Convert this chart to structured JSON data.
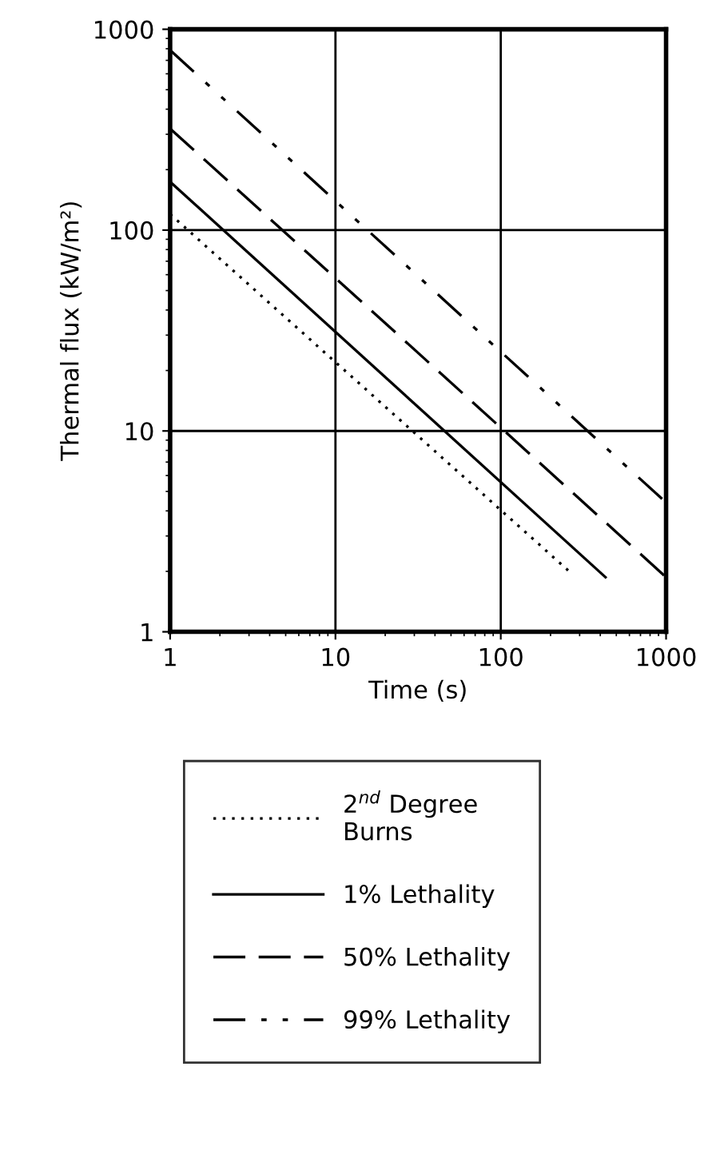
{
  "chart_data": {
    "type": "line",
    "xlabel": "Time (s)",
    "ylabel": "Thermal flux (kW/m²)",
    "log": "xy",
    "xlim": [
      1,
      1000
    ],
    "ylim": [
      1,
      1000
    ],
    "xticks": [
      1,
      10,
      100,
      1000
    ],
    "yticks": [
      1,
      10,
      100,
      1000
    ],
    "grid": true,
    "legend": "bottom",
    "marker": "none",
    "series": [
      {
        "name": "2$^{nd}$ Degree\nBurns",
        "color": "#000000",
        "line_style": "dotted",
        "x": [
          1,
          263
        ],
        "values": [
          120,
          1.98
        ]
      },
      {
        "name": "1% Lethality",
        "color": "#000000",
        "line_style": "solid",
        "x": [
          1,
          430
        ],
        "values": [
          174,
          1.87
        ]
      },
      {
        "name": "50% Lethality",
        "color": "#000000",
        "line_style": "dashed",
        "x": [
          1,
          1000
        ],
        "values": [
          320,
          1.87
        ]
      },
      {
        "name": "99% Lethality",
        "color": "#000000",
        "line_style": "dashdot",
        "x": [
          1,
          1000
        ],
        "values": [
          787,
          4.4
        ]
      }
    ]
  }
}
